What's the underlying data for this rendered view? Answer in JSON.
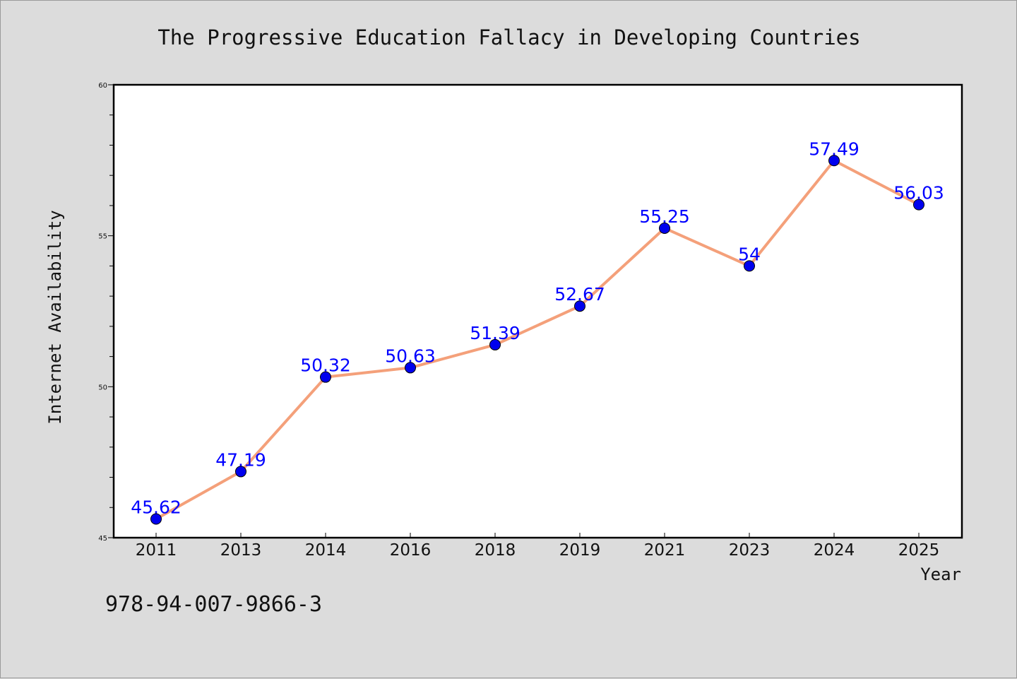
{
  "chart_data": {
    "type": "line",
    "title": "The Progressive Education Fallacy in Developing Countries",
    "xlabel": "Year",
    "ylabel": "Internet Availability",
    "categories": [
      "2011",
      "2013",
      "2014",
      "2016",
      "2018",
      "2019",
      "2021",
      "2023",
      "2024",
      "2025"
    ],
    "series": [
      {
        "values": [
          45.62,
          47.19,
          50.32,
          50.63,
          51.39,
          52.67,
          55.25,
          54,
          57.49,
          56.03
        ],
        "data_labels": [
          "45.62",
          "47.19",
          "50.32",
          "50.63",
          "51.39",
          "52.67",
          "55.25",
          "54",
          "57.49",
          "56.03"
        ]
      }
    ],
    "ylim": [
      45,
      60
    ],
    "yticks": [
      "45",
      "50",
      "55",
      "60"
    ],
    "grid": false,
    "legend": "none",
    "colors": {
      "line": "#f4a07a",
      "marker": "#0000ee",
      "data_label": "#0000ff",
      "background": "#dcdcdc",
      "plot_background": "#ffffff"
    }
  },
  "footer": {
    "isbn": "978-94-007-9866-3"
  }
}
